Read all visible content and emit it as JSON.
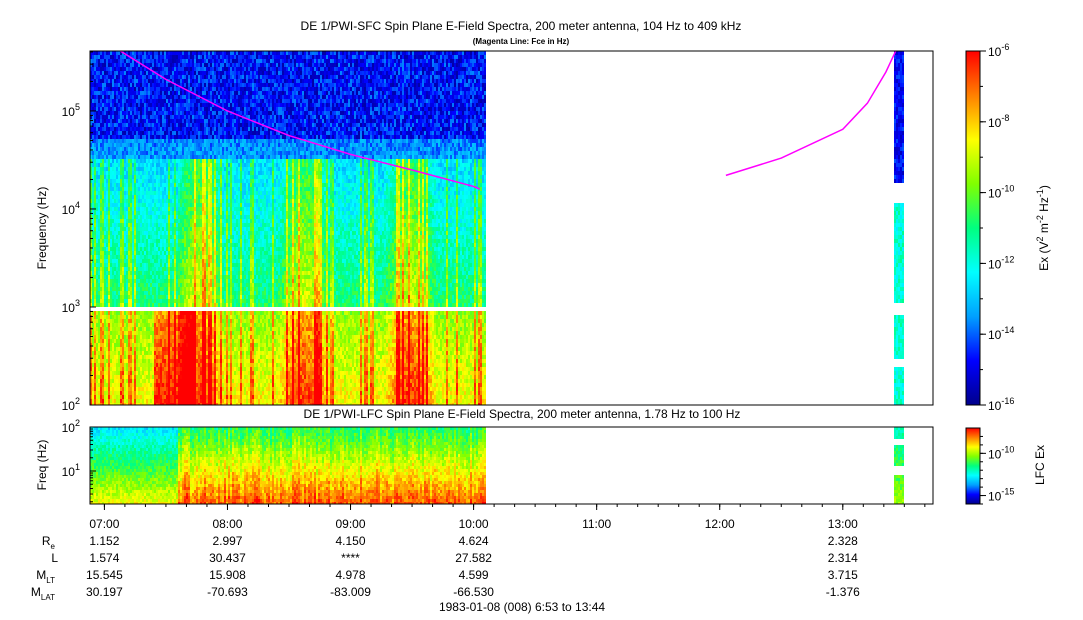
{
  "chart_data": [
    {
      "type": "heatmap",
      "title": "DE 1/PWI-SFC  Spin Plane E-Field Spectra, 200 meter antenna, 104 Hz to 409 kHz",
      "subtitle": "(Magenta Line: Fce in Hz)",
      "ylabel": "Frequency (Hz)",
      "y_scale": "log",
      "ylim": [
        100,
        409000
      ],
      "y_ticks": [
        {
          "value": 100,
          "base": "10",
          "exp": "2"
        },
        {
          "value": 1000,
          "base": "10",
          "exp": "3"
        },
        {
          "value": 10000,
          "base": "10",
          "exp": "4"
        },
        {
          "value": 100000,
          "base": "10",
          "exp": "5"
        }
      ],
      "x_ticks": [
        "07:00",
        "08:00",
        "09:00",
        "10:00",
        "11:00",
        "12:00",
        "13:00"
      ],
      "data_coverage_hours": [
        [
          6.883,
          10.1
        ],
        [
          13.42,
          13.5
        ]
      ],
      "data_gap_freq_hz": [
        880,
        1000
      ],
      "colorbar": {
        "label_parts": [
          "Ex (V",
          "2",
          " m",
          "-2",
          " Hz",
          "-1",
          ")"
        ],
        "scale": "log",
        "range": [
          1e-16,
          1e-06
        ],
        "ticks": [
          {
            "value": 1e-06,
            "base": "10",
            "exp": "-6"
          },
          {
            "value": 1e-08,
            "base": "10",
            "exp": "-8"
          },
          {
            "value": 1e-10,
            "base": "10",
            "exp": "-10"
          },
          {
            "value": 1e-12,
            "base": "10",
            "exp": "-12"
          },
          {
            "value": 1e-14,
            "base": "10",
            "exp": "-14"
          },
          {
            "value": 1e-16,
            "base": "10",
            "exp": "-16"
          }
        ]
      },
      "overlay_fce": {
        "color": "#ff00ff",
        "segments": [
          [
            [
              7.13,
              409000
            ],
            [
              7.5,
              210000
            ],
            [
              8.0,
              100000
            ],
            [
              8.5,
              56000
            ],
            [
              9.0,
              36000
            ],
            [
              9.5,
              25000
            ],
            [
              10.0,
              17000
            ],
            [
              10.05,
              16000
            ]
          ],
          [
            [
              12.05,
              22000
            ],
            [
              12.5,
              33000
            ],
            [
              13.0,
              65000
            ],
            [
              13.2,
              120000
            ],
            [
              13.35,
              250000
            ],
            [
              13.43,
              409000
            ]
          ]
        ]
      }
    },
    {
      "type": "heatmap",
      "title": "DE 1/PWI-LFC  Spin Plane E-Field Spectra, 200 meter antenna, 1.78 Hz to 100 Hz",
      "ylabel": "Freq (Hz)",
      "y_scale": "log",
      "ylim": [
        1.78,
        100
      ],
      "y_ticks": [
        {
          "value": 10,
          "base": "10",
          "exp": "1"
        },
        {
          "value": 100,
          "base": "10",
          "exp": "2"
        }
      ],
      "colorbar": {
        "label": "LFC Ex",
        "scale": "log",
        "range": [
          1e-16,
          1e-07
        ],
        "ticks": [
          {
            "value": 1e-10,
            "base": "10",
            "exp": "-10"
          },
          {
            "value": 1e-15,
            "base": "10",
            "exp": "-15"
          }
        ]
      }
    }
  ],
  "ephemeris": {
    "rows": [
      {
        "label": "R",
        "sub": "e",
        "values": [
          "1.152",
          "2.997",
          "4.150",
          "4.624",
          "",
          "",
          "2.328"
        ]
      },
      {
        "label": "L",
        "sub": "",
        "values": [
          "1.574",
          "30.437",
          "****",
          "27.582",
          "",
          "",
          "2.314"
        ]
      },
      {
        "label": "M",
        "sub": "LT",
        "values": [
          "15.545",
          "15.908",
          "4.978",
          "4.599",
          "",
          "",
          "3.715"
        ]
      },
      {
        "label": "M",
        "sub": "LAT",
        "values": [
          "30.197",
          "-70.693",
          "-83.009",
          "-66.530",
          "",
          "",
          "-1.376"
        ]
      }
    ]
  },
  "footer": "1983-01-08 (008) 6:53 to 13:44",
  "colors": {
    "fce_line": "#ff00ff",
    "colormap": [
      "#00008b",
      "#0000ff",
      "#00a0ff",
      "#00ffff",
      "#00ff80",
      "#80ff00",
      "#ffff00",
      "#ff8000",
      "#ff0000"
    ]
  }
}
